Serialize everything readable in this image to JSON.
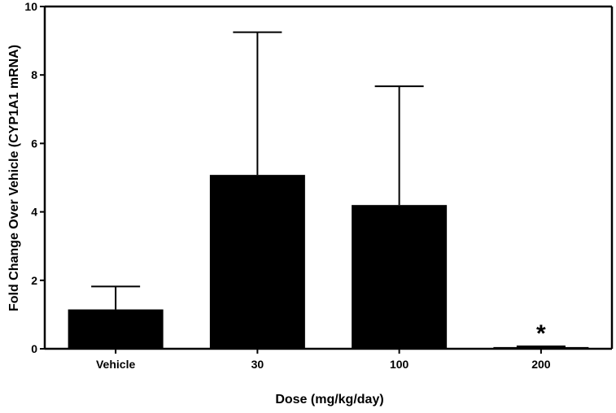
{
  "chart_data": {
    "type": "bar",
    "title": "",
    "xlabel": "Dose (mg/kg/day)",
    "ylabel": "Fold Change Over Vehicle (CYP1A1 mRNA)",
    "categories": [
      "Vehicle",
      "30",
      "100",
      "200"
    ],
    "values": [
      1.15,
      5.08,
      4.2,
      0.05
    ],
    "error_upper": [
      1.82,
      9.25,
      7.67,
      0.07
    ],
    "ylim": [
      0,
      10
    ],
    "yticks": [
      "0",
      "2",
      "4",
      "6",
      "8",
      "10"
    ],
    "grid": false,
    "legend": "none",
    "bar_color": "#000000",
    "annotations": [
      {
        "category": "200",
        "text": "*"
      }
    ]
  }
}
